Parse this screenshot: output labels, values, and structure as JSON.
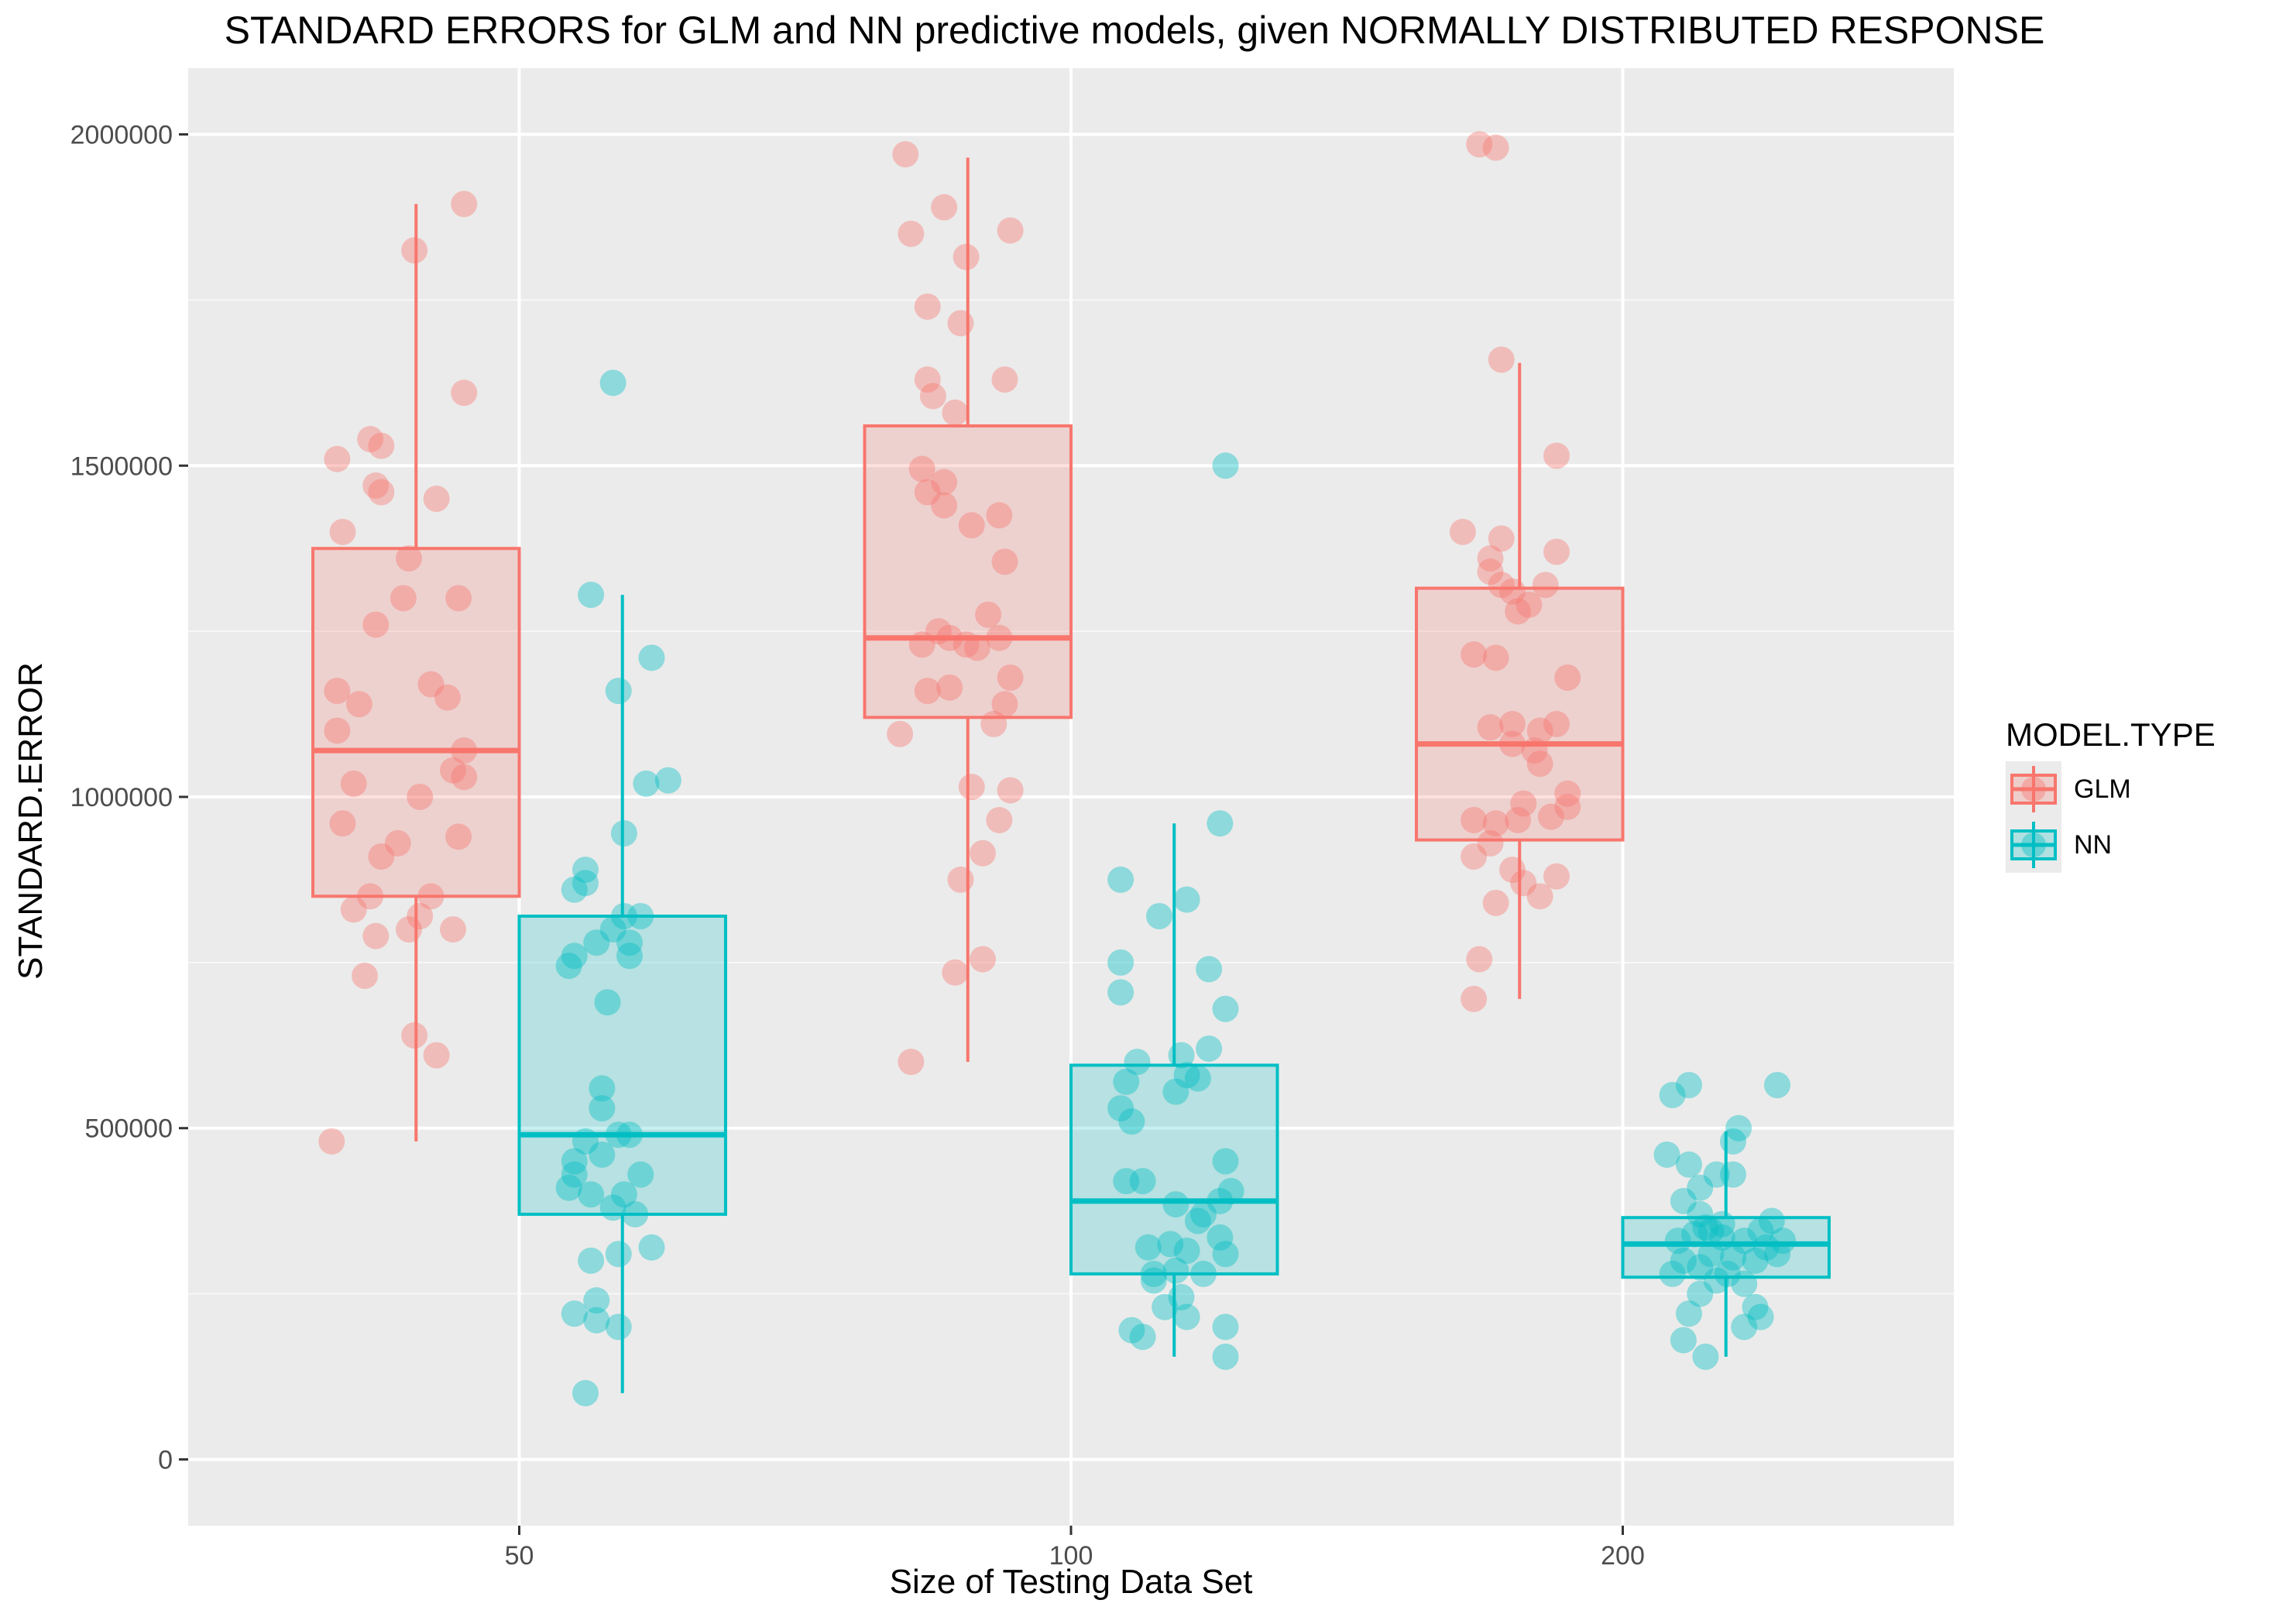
{
  "chart_data": {
    "type": "box-jitter",
    "title": "STANDARD ERRORS for GLM and NN predictive models, given NORMALLY DISTRIBUTED RESPONSE",
    "xlabel": "Size of Testing Data Set",
    "ylabel": "STANDARD.ERROR",
    "categories": [
      "50",
      "100",
      "200"
    ],
    "ylim": [
      -100000,
      2100000
    ],
    "yticks": [
      0,
      500000,
      1000000,
      1500000,
      2000000
    ],
    "ytick_labels": [
      "0",
      "500000",
      "1000000",
      "1500000",
      "2000000"
    ],
    "grid": true,
    "legend": {
      "title": "MODEL.TYPE",
      "position": "right"
    },
    "series": [
      {
        "name": "GLM",
        "color": "#F8766D",
        "boxes": [
          {
            "category": "50",
            "whisker_low": 480000,
            "q1": 850000,
            "median": 1070000,
            "q3": 1375000,
            "whisker_high": 1895000
          },
          {
            "category": "100",
            "whisker_low": 600000,
            "q1": 1120000,
            "median": 1240000,
            "q3": 1560000,
            "whisker_high": 1965000
          },
          {
            "category": "200",
            "whisker_low": 695000,
            "q1": 935000,
            "median": 1080000,
            "q3": 1315000,
            "whisker_high": 1655000
          }
        ],
        "points": [
          [
            -0.34,
            480000
          ],
          [
            -0.28,
            730000
          ],
          [
            -0.3,
            830000
          ],
          [
            -0.27,
            850000
          ],
          [
            -0.25,
            910000
          ],
          [
            -0.22,
            930000
          ],
          [
            -0.32,
            960000
          ],
          [
            -0.3,
            1020000
          ],
          [
            -0.33,
            1100000
          ],
          [
            -0.29,
            1140000
          ],
          [
            -0.33,
            1160000
          ],
          [
            -0.26,
            1260000
          ],
          [
            -0.21,
            1300000
          ],
          [
            -0.32,
            1400000
          ],
          [
            -0.25,
            1460000
          ],
          [
            -0.26,
            1470000
          ],
          [
            -0.33,
            1510000
          ],
          [
            -0.27,
            1540000
          ],
          [
            -0.25,
            1530000
          ],
          [
            -0.2,
            1360000
          ],
          [
            -0.15,
            1450000
          ],
          [
            -0.11,
            1300000
          ],
          [
            -0.16,
            1170000
          ],
          [
            -0.13,
            1150000
          ],
          [
            -0.1,
            1070000
          ],
          [
            -0.12,
            1040000
          ],
          [
            -0.1,
            1030000
          ],
          [
            -0.18,
            1000000
          ],
          [
            -0.11,
            940000
          ],
          [
            -0.16,
            850000
          ],
          [
            -0.18,
            820000
          ],
          [
            -0.2,
            800000
          ],
          [
            -0.12,
            800000
          ],
          [
            -0.26,
            790000
          ],
          [
            -0.19,
            640000
          ],
          [
            -0.15,
            610000
          ],
          [
            -0.19,
            1825000
          ],
          [
            -0.1,
            1895000
          ],
          [
            -0.1,
            1610000
          ],
          [
            -0.29,
            600000
          ],
          [
            -0.21,
            735000
          ],
          [
            -0.2,
            875000
          ],
          [
            -0.18,
            1015000
          ],
          [
            -0.31,
            1095000
          ],
          [
            -0.26,
            1160000
          ],
          [
            -0.22,
            1165000
          ],
          [
            -0.27,
            1230000
          ],
          [
            -0.24,
            1250000
          ],
          [
            -0.19,
            1230000
          ],
          [
            -0.17,
            1225000
          ],
          [
            -0.13,
            1240000
          ],
          [
            -0.15,
            1275000
          ],
          [
            -0.22,
            1240000
          ],
          [
            -0.11,
            1180000
          ],
          [
            -0.12,
            1140000
          ],
          [
            -0.14,
            1110000
          ],
          [
            -0.16,
            915000
          ],
          [
            -0.13,
            965000
          ],
          [
            -0.11,
            1010000
          ],
          [
            -0.16,
            755000
          ],
          [
            -0.12,
            1355000
          ],
          [
            -0.13,
            1425000
          ],
          [
            -0.18,
            1410000
          ],
          [
            -0.23,
            1440000
          ],
          [
            -0.26,
            1460000
          ],
          [
            -0.27,
            1495000
          ],
          [
            -0.23,
            1475000
          ],
          [
            -0.21,
            1580000
          ],
          [
            -0.25,
            1605000
          ],
          [
            -0.26,
            1630000
          ],
          [
            -0.12,
            1630000
          ],
          [
            -0.2,
            1715000
          ],
          [
            -0.26,
            1740000
          ],
          [
            -0.19,
            1815000
          ],
          [
            -0.29,
            1850000
          ],
          [
            -0.11,
            1855000
          ],
          [
            -0.23,
            1890000
          ],
          [
            -0.3,
            1970000
          ],
          [
            -0.27,
            695000
          ],
          [
            -0.26,
            755000
          ],
          [
            -0.23,
            840000
          ],
          [
            -0.27,
            910000
          ],
          [
            -0.24,
            930000
          ],
          [
            -0.27,
            965000
          ],
          [
            -0.23,
            960000
          ],
          [
            -0.19,
            965000
          ],
          [
            -0.13,
            970000
          ],
          [
            -0.18,
            990000
          ],
          [
            -0.1,
            1005000
          ],
          [
            -0.1,
            985000
          ],
          [
            -0.15,
            1050000
          ],
          [
            -0.16,
            1070000
          ],
          [
            -0.2,
            1080000
          ],
          [
            -0.24,
            1105000
          ],
          [
            -0.2,
            1110000
          ],
          [
            -0.15,
            1100000
          ],
          [
            -0.12,
            1110000
          ],
          [
            -0.1,
            1180000
          ],
          [
            -0.23,
            1210000
          ],
          [
            -0.27,
            1215000
          ],
          [
            -0.19,
            1280000
          ],
          [
            -0.17,
            1290000
          ],
          [
            -0.14,
            1320000
          ],
          [
            -0.22,
            1320000
          ],
          [
            -0.2,
            1310000
          ],
          [
            -0.24,
            1340000
          ],
          [
            -0.24,
            1360000
          ],
          [
            -0.22,
            1390000
          ],
          [
            -0.29,
            1400000
          ],
          [
            -0.12,
            1370000
          ],
          [
            -0.12,
            1515000
          ],
          [
            -0.22,
            1660000
          ],
          [
            -0.26,
            1985000
          ],
          [
            -0.23,
            1980000
          ],
          [
            -0.2,
            890000
          ],
          [
            -0.18,
            870000
          ],
          [
            -0.15,
            850000
          ],
          [
            -0.12,
            880000
          ],
          [
            -0.1,
            725000
          ],
          [
            -0.16,
            830000
          ]
        ]
      },
      {
        "name": "NN",
        "color": "#00BFC4",
        "boxes": [
          {
            "category": "50",
            "whisker_low": 100000,
            "q1": 370000,
            "median": 490000,
            "q3": 820000,
            "whisker_high": 1305000
          },
          {
            "category": "100",
            "whisker_low": 155000,
            "q1": 280000,
            "median": 390000,
            "q3": 595000,
            "whisker_high": 960000
          },
          {
            "category": "200",
            "whisker_low": 155000,
            "q1": 275000,
            "median": 325000,
            "q3": 365000,
            "whisker_high": 495000
          }
        ],
        "points": [
          [
            0.1,
            220000
          ],
          [
            0.14,
            240000
          ],
          [
            0.18,
            200000
          ],
          [
            0.12,
            100000
          ],
          [
            0.14,
            210000
          ],
          [
            0.13,
            300000
          ],
          [
            0.18,
            310000
          ],
          [
            0.24,
            320000
          ],
          [
            0.21,
            370000
          ],
          [
            0.17,
            380000
          ],
          [
            0.19,
            400000
          ],
          [
            0.13,
            400000
          ],
          [
            0.09,
            410000
          ],
          [
            0.1,
            430000
          ],
          [
            0.22,
            430000
          ],
          [
            0.1,
            450000
          ],
          [
            0.15,
            460000
          ],
          [
            0.12,
            480000
          ],
          [
            0.18,
            490000
          ],
          [
            0.2,
            490000
          ],
          [
            0.15,
            530000
          ],
          [
            0.15,
            560000
          ],
          [
            0.09,
            745000
          ],
          [
            0.1,
            760000
          ],
          [
            0.14,
            780000
          ],
          [
            0.2,
            760000
          ],
          [
            0.19,
            820000
          ],
          [
            0.22,
            820000
          ],
          [
            0.17,
            800000
          ],
          [
            0.1,
            860000
          ],
          [
            0.12,
            870000
          ],
          [
            0.12,
            890000
          ],
          [
            0.2,
            780000
          ],
          [
            0.16,
            690000
          ],
          [
            0.19,
            945000
          ],
          [
            0.23,
            1020000
          ],
          [
            0.27,
            1025000
          ],
          [
            0.24,
            1210000
          ],
          [
            0.18,
            1160000
          ],
          [
            0.13,
            1305000
          ],
          [
            0.17,
            1625000
          ],
          [
            0.11,
            195000
          ],
          [
            0.13,
            185000
          ],
          [
            0.21,
            215000
          ],
          [
            0.28,
            155000
          ],
          [
            0.28,
            200000
          ],
          [
            0.2,
            245000
          ],
          [
            0.17,
            230000
          ],
          [
            0.15,
            270000
          ],
          [
            0.19,
            285000
          ],
          [
            0.24,
            280000
          ],
          [
            0.21,
            315000
          ],
          [
            0.14,
            320000
          ],
          [
            0.18,
            325000
          ],
          [
            0.15,
            280000
          ],
          [
            0.27,
            335000
          ],
          [
            0.28,
            310000
          ],
          [
            0.24,
            370000
          ],
          [
            0.19,
            385000
          ],
          [
            0.23,
            360000
          ],
          [
            0.27,
            390000
          ],
          [
            0.29,
            405000
          ],
          [
            0.28,
            450000
          ],
          [
            0.1,
            420000
          ],
          [
            0.13,
            420000
          ],
          [
            0.11,
            510000
          ],
          [
            0.09,
            530000
          ],
          [
            0.1,
            570000
          ],
          [
            0.12,
            600000
          ],
          [
            0.19,
            555000
          ],
          [
            0.21,
            580000
          ],
          [
            0.23,
            575000
          ],
          [
            0.2,
            610000
          ],
          [
            0.25,
            620000
          ],
          [
            0.28,
            680000
          ],
          [
            0.25,
            740000
          ],
          [
            0.09,
            705000
          ],
          [
            0.09,
            750000
          ],
          [
            0.16,
            820000
          ],
          [
            0.21,
            845000
          ],
          [
            0.09,
            875000
          ],
          [
            0.27,
            960000
          ],
          [
            0.28,
            1500000
          ],
          [
            0.11,
            180000
          ],
          [
            0.15,
            155000
          ],
          [
            0.22,
            200000
          ],
          [
            0.25,
            215000
          ],
          [
            0.24,
            230000
          ],
          [
            0.12,
            220000
          ],
          [
            0.14,
            250000
          ],
          [
            0.17,
            270000
          ],
          [
            0.19,
            280000
          ],
          [
            0.22,
            265000
          ],
          [
            0.09,
            280000
          ],
          [
            0.11,
            300000
          ],
          [
            0.14,
            290000
          ],
          [
            0.16,
            310000
          ],
          [
            0.2,
            305000
          ],
          [
            0.24,
            300000
          ],
          [
            0.26,
            320000
          ],
          [
            0.28,
            310000
          ],
          [
            0.1,
            330000
          ],
          [
            0.13,
            340000
          ],
          [
            0.15,
            350000
          ],
          [
            0.18,
            355000
          ],
          [
            0.22,
            330000
          ],
          [
            0.25,
            345000
          ],
          [
            0.27,
            360000
          ],
          [
            0.29,
            330000
          ],
          [
            0.11,
            390000
          ],
          [
            0.14,
            410000
          ],
          [
            0.17,
            430000
          ],
          [
            0.2,
            430000
          ],
          [
            0.12,
            445000
          ],
          [
            0.08,
            460000
          ],
          [
            0.2,
            480000
          ],
          [
            0.21,
            500000
          ],
          [
            0.12,
            565000
          ],
          [
            0.09,
            550000
          ],
          [
            0.28,
            565000
          ],
          [
            0.16,
            345000
          ],
          [
            0.18,
            335000
          ],
          [
            0.14,
            370000
          ]
        ]
      }
    ]
  }
}
